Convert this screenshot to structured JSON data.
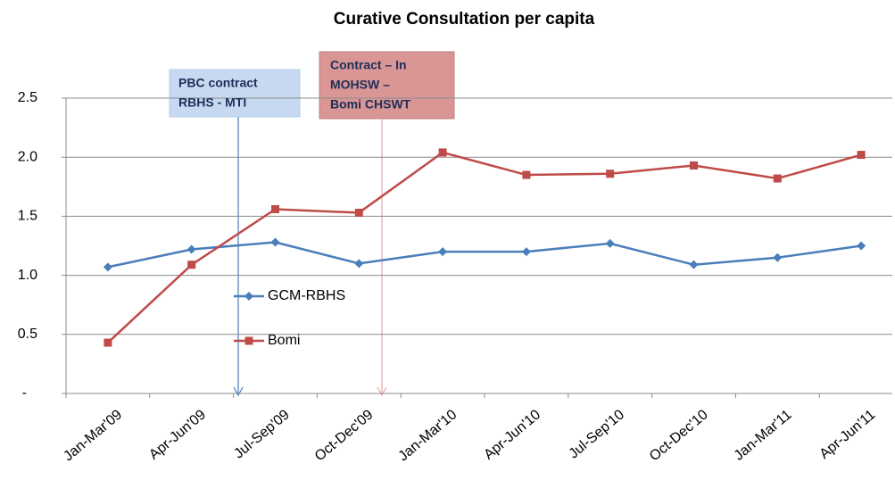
{
  "chart_data": {
    "type": "line",
    "title": "Curative Consultation per capita",
    "categories": [
      "Jan-Mar'09",
      "Apr-Jun'09",
      "Jul-Sep'09",
      "Oct-Dec'09",
      "Jan-Mar'10",
      "Apr-Jun'10",
      "Jul-Sep'10",
      "Oct-Dec'10",
      "Jan-Mar'11",
      "Apr-Jun'11"
    ],
    "series": [
      {
        "name": "GCM-RBHS",
        "color": "#4a7ebb",
        "marker": "diamond",
        "values": [
          1.07,
          1.22,
          1.28,
          1.1,
          1.2,
          1.2,
          1.27,
          1.09,
          1.15,
          1.25
        ]
      },
      {
        "name": "Bomi",
        "color": "#be4b48",
        "marker": "square",
        "values": [
          0.43,
          1.09,
          1.56,
          1.53,
          2.04,
          1.85,
          1.86,
          1.93,
          1.82,
          2.02
        ]
      }
    ],
    "ylim": [
      0,
      2.5
    ],
    "yticks": [
      {
        "value": 0,
        "label": "-"
      },
      0.5,
      {
        "value": 1,
        "label": "1.0"
      },
      1.5,
      {
        "value": 2,
        "label": "2.0"
      },
      2.5
    ],
    "grid": true,
    "annotations": [
      {
        "lines": [
          "PBC contract",
          "RBHS - MTI"
        ]
      },
      {
        "lines": [
          "Contract – In",
          "MOHSW –",
          "Bomi CHSWT"
        ]
      }
    ]
  }
}
